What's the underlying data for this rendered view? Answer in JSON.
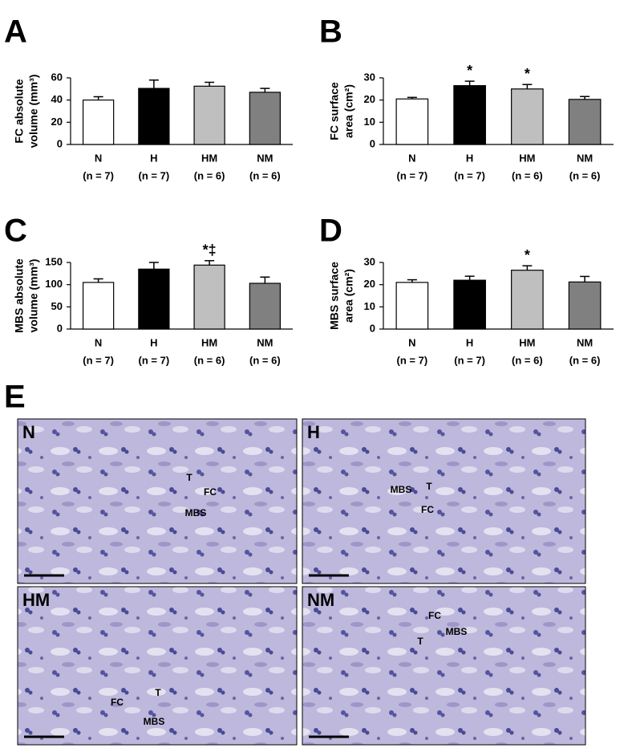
{
  "chart_data": [
    {
      "type": "bar",
      "panel": "A",
      "ylabel": [
        "FC absolute",
        "volume (mm³)"
      ],
      "categories": [
        "N",
        "H",
        "HM",
        "NM"
      ],
      "category_notes": [
        "(n = 7)",
        "(n = 7)",
        "(n = 6)",
        "(n = 6)"
      ],
      "values": [
        40,
        50.5,
        52.5,
        47
      ],
      "errors": [
        3,
        7.5,
        3.5,
        3.5
      ],
      "markers": [
        null,
        null,
        null,
        null
      ],
      "colors": [
        "#ffffff",
        "#000000",
        "#bfbfbf",
        "#808080"
      ],
      "ylim": [
        0,
        60
      ],
      "yticks": [
        0,
        20,
        40,
        60
      ]
    },
    {
      "type": "bar",
      "panel": "B",
      "ylabel": [
        "FC surface",
        "area (cm²)"
      ],
      "categories": [
        "N",
        "H",
        "HM",
        "NM"
      ],
      "category_notes": [
        "(n = 7)",
        "(n = 7)",
        "(n = 6)",
        "(n = 6)"
      ],
      "values": [
        20.5,
        26.5,
        25,
        20.3
      ],
      "errors": [
        0.7,
        2,
        2,
        1.3
      ],
      "markers": [
        null,
        "*",
        "*",
        null
      ],
      "colors": [
        "#ffffff",
        "#000000",
        "#bfbfbf",
        "#808080"
      ],
      "ylim": [
        0,
        30
      ],
      "yticks": [
        0,
        10,
        20,
        30
      ]
    },
    {
      "type": "bar",
      "panel": "C",
      "ylabel": [
        "MBS absolute",
        "volume (mm³)"
      ],
      "categories": [
        "N",
        "H",
        "HM",
        "NM"
      ],
      "category_notes": [
        "(n = 7)",
        "(n = 7)",
        "(n = 6)",
        "(n = 6)"
      ],
      "values": [
        105,
        135,
        144,
        103
      ],
      "errors": [
        8,
        15,
        10,
        14
      ],
      "markers": [
        null,
        null,
        "*‡",
        null
      ],
      "colors": [
        "#ffffff",
        "#000000",
        "#bfbfbf",
        "#808080"
      ],
      "ylim": [
        0,
        150
      ],
      "yticks": [
        0,
        50,
        100,
        150
      ]
    },
    {
      "type": "bar",
      "panel": "D",
      "ylabel": [
        "MBS surface",
        "area (cm²)"
      ],
      "categories": [
        "N",
        "H",
        "HM",
        "NM"
      ],
      "category_notes": [
        "(n = 7)",
        "(n = 7)",
        "(n = 6)",
        "(n = 6)"
      ],
      "values": [
        21,
        22,
        26.5,
        21.2
      ],
      "errors": [
        1.2,
        1.8,
        2,
        2.5
      ],
      "markers": [
        null,
        null,
        "*",
        null
      ],
      "colors": [
        "#ffffff",
        "#000000",
        "#bfbfbf",
        "#808080"
      ],
      "ylim": [
        0,
        30
      ],
      "yticks": [
        0,
        10,
        20,
        30
      ]
    }
  ],
  "panel_e": {
    "letter": "E",
    "images": [
      {
        "label": "N",
        "annotations": [
          "T",
          "FC",
          "MBS"
        ]
      },
      {
        "label": "H",
        "annotations": [
          "MBS",
          "T",
          "FC"
        ]
      },
      {
        "label": "HM",
        "annotations": [
          "FC",
          "T",
          "MBS"
        ]
      },
      {
        "label": "NM",
        "annotations": [
          "FC",
          "MBS",
          "T"
        ]
      }
    ]
  }
}
